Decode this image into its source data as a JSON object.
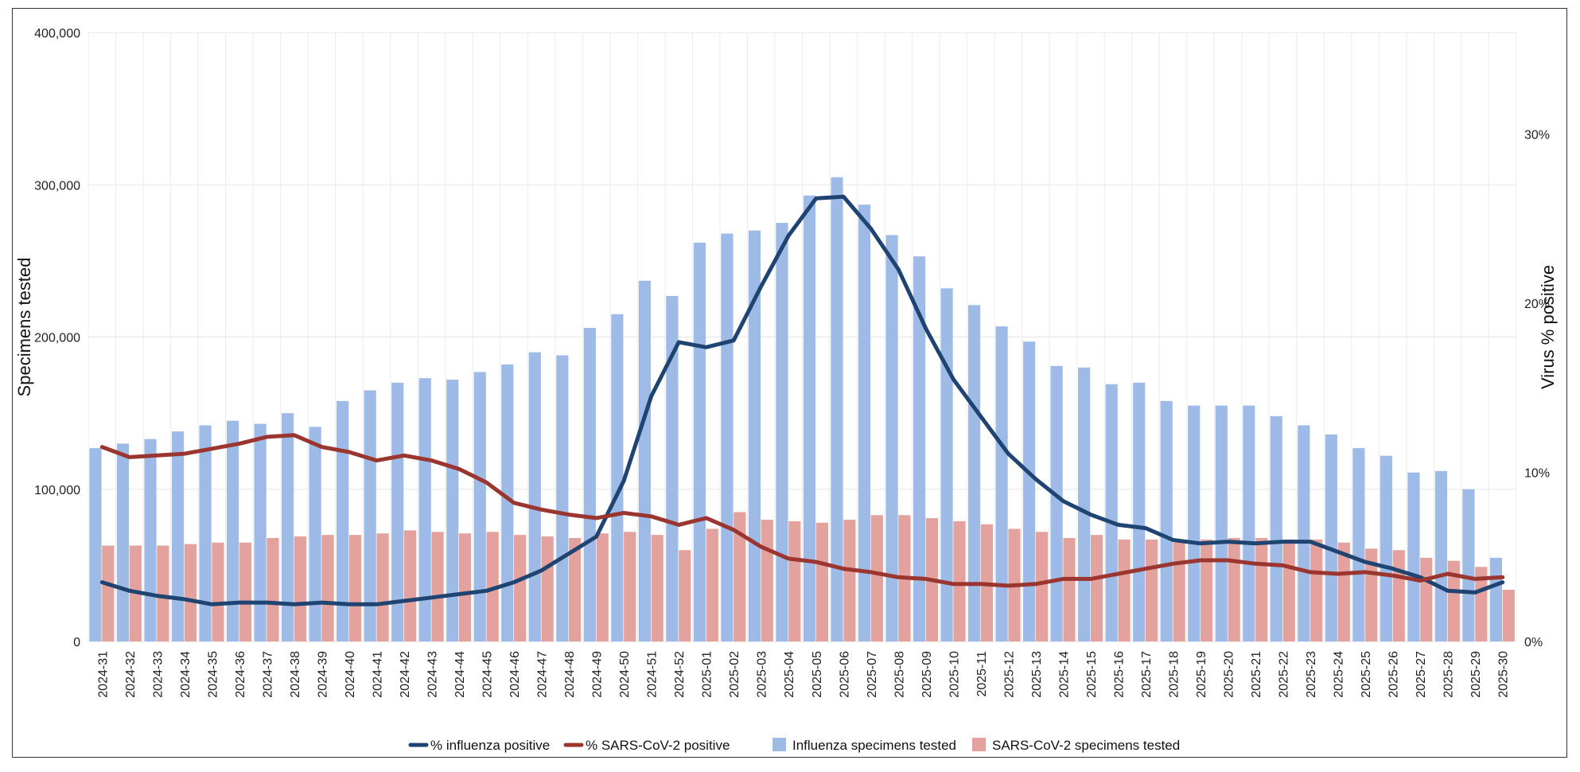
{
  "chart_data": {
    "type": "bar",
    "categories": [
      "2024-31",
      "2024-32",
      "2024-33",
      "2024-34",
      "2024-35",
      "2024-36",
      "2024-37",
      "2024-38",
      "2024-39",
      "2024-40",
      "2024-41",
      "2024-42",
      "2024-43",
      "2024-44",
      "2024-45",
      "2024-46",
      "2024-47",
      "2024-48",
      "2024-49",
      "2024-50",
      "2024-51",
      "2024-52",
      "2025-01",
      "2025-02",
      "2025-03",
      "2025-04",
      "2025-05",
      "2025-06",
      "2025-07",
      "2025-08",
      "2025-09",
      "2025-10",
      "2025-11",
      "2025-12",
      "2025-13",
      "2025-14",
      "2025-15",
      "2025-16",
      "2025-17",
      "2025-18",
      "2025-19",
      "2025-20",
      "2025-21",
      "2025-22",
      "2025-23",
      "2025-24",
      "2025-25",
      "2025-26",
      "2025-27",
      "2025-28",
      "2025-29",
      "2025-30"
    ],
    "series": [
      {
        "name": "Influenza specimens tested",
        "axis": "left",
        "kind": "bar",
        "color": "#9dbbe6",
        "values": [
          127000,
          130000,
          133000,
          138000,
          142000,
          145000,
          143000,
          150000,
          141000,
          158000,
          165000,
          170000,
          173000,
          172000,
          177000,
          182000,
          190000,
          188000,
          206000,
          215000,
          237000,
          227000,
          262000,
          268000,
          270000,
          275000,
          293000,
          305000,
          287000,
          267000,
          253000,
          232000,
          221000,
          207000,
          197000,
          181000,
          180000,
          169000,
          170000,
          158000,
          155000,
          155000,
          155000,
          148000,
          142000,
          136000,
          127000,
          122000,
          111000,
          112000,
          100000,
          55000
        ]
      },
      {
        "name": "SARS-CoV-2 specimens tested",
        "axis": "left",
        "kind": "bar",
        "color": "#e3a29d",
        "values": [
          63000,
          63000,
          63000,
          64000,
          65000,
          65000,
          68000,
          69000,
          70000,
          70000,
          71000,
          73000,
          72000,
          71000,
          72000,
          70000,
          69000,
          68000,
          71000,
          72000,
          70000,
          60000,
          74000,
          85000,
          80000,
          79000,
          78000,
          80000,
          83000,
          83000,
          81000,
          79000,
          77000,
          74000,
          72000,
          68000,
          70000,
          67000,
          67000,
          65000,
          67000,
          68000,
          68000,
          67000,
          67000,
          65000,
          61000,
          60000,
          55000,
          53000,
          49000,
          34000
        ]
      },
      {
        "name": "% influenza positive",
        "axis": "right",
        "kind": "line",
        "color": "#1f4471",
        "values": [
          3.5,
          3.0,
          2.7,
          2.5,
          2.2,
          2.3,
          2.3,
          2.2,
          2.3,
          2.2,
          2.2,
          2.4,
          2.6,
          2.8,
          3.0,
          3.5,
          4.2,
          5.2,
          6.2,
          9.5,
          14.5,
          17.7,
          17.4,
          17.8,
          21.0,
          24.0,
          26.2,
          26.3,
          24.4,
          22.0,
          18.5,
          15.5,
          13.3,
          11.1,
          9.6,
          8.3,
          7.5,
          6.9,
          6.7,
          6.0,
          5.8,
          5.9,
          5.8,
          5.9,
          5.9,
          5.3,
          4.7,
          4.3,
          3.8,
          3.0,
          2.9,
          3.5
        ]
      },
      {
        "name": "% SARS-CoV-2 positive",
        "axis": "right",
        "kind": "line",
        "color": "#9b3530",
        "values": [
          11.5,
          10.9,
          11.0,
          11.1,
          11.4,
          11.7,
          12.1,
          12.2,
          11.5,
          11.2,
          10.7,
          11.0,
          10.7,
          10.2,
          9.4,
          8.2,
          7.8,
          7.5,
          7.3,
          7.6,
          7.4,
          6.9,
          7.3,
          6.6,
          5.6,
          4.9,
          4.7,
          4.3,
          4.1,
          3.8,
          3.7,
          3.4,
          3.4,
          3.3,
          3.4,
          3.7,
          3.7,
          4.0,
          4.3,
          4.6,
          4.8,
          4.8,
          4.6,
          4.5,
          4.1,
          4.0,
          4.1,
          3.9,
          3.6,
          4.0,
          3.7,
          3.8
        ]
      }
    ],
    "left_axis": {
      "label": "Specimens tested",
      "min": 0,
      "max": 400000,
      "ticks": [
        0,
        100000,
        200000,
        300000,
        400000
      ],
      "tick_labels": [
        "0",
        "100,000",
        "200,000",
        "300,000",
        "400,000"
      ]
    },
    "right_axis": {
      "label": "Virus % positive",
      "min": 0,
      "max": 36,
      "ticks": [
        0,
        10,
        20,
        30
      ],
      "tick_labels": [
        "0%",
        "10%",
        "20%",
        "30%"
      ]
    },
    "grid": true,
    "legend_position": "bottom",
    "legend": [
      "% influenza positive",
      "% SARS-CoV-2 positive",
      "Influenza specimens tested",
      "SARS-CoV-2 specimens tested"
    ]
  }
}
